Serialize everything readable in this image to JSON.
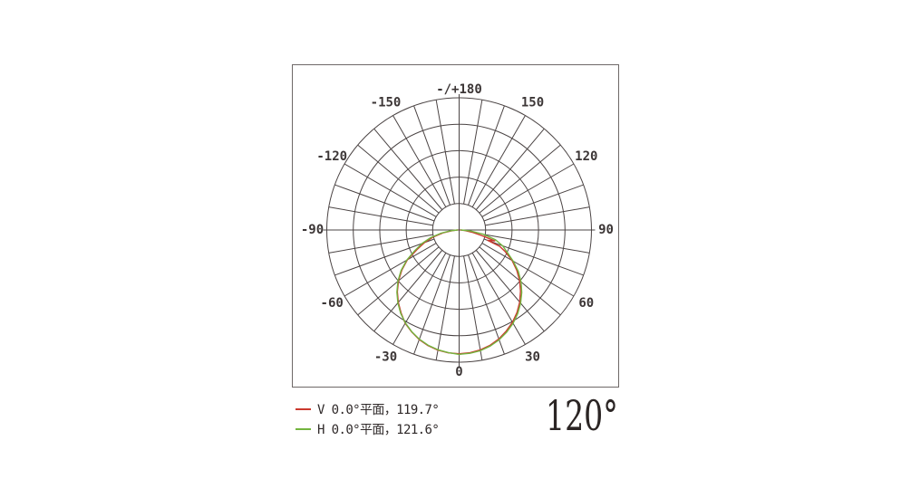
{
  "colors": {
    "background": "#ffffff",
    "frame_border": "#6e6867",
    "grid": "#4b4444",
    "label_text": "#3c3636",
    "legend_text": "#2e2828",
    "beam_angle_text": "#2b2524",
    "v_curve": "#cb392e",
    "h_curve": "#73b43e"
  },
  "legend": {
    "items": [
      {
        "name": "V",
        "label": "V 0.0°平面，119.7°",
        "color": "#cb392e"
      },
      {
        "name": "H",
        "label": "H 0.0°平面，121.6°",
        "color": "#73b43e"
      }
    ]
  },
  "beam_angle": {
    "value_label": "120°"
  },
  "chart_data": {
    "type": "line",
    "polar": true,
    "title": "",
    "angle_unit": "deg",
    "zero_direction": "down",
    "value_meaning": "relative luminous intensity, fraction of outer ring radius",
    "ring_fractions": [
      0.2,
      0.4,
      0.6,
      0.8,
      1.0
    ],
    "spoke_step_deg": 10,
    "angle_ticks": [
      {
        "angle": 0,
        "label": "0"
      },
      {
        "angle": 30,
        "label": "30"
      },
      {
        "angle": 60,
        "label": "60"
      },
      {
        "angle": 90,
        "label": "90"
      },
      {
        "angle": 120,
        "label": "120"
      },
      {
        "angle": 150,
        "label": "150"
      },
      {
        "angle": 180,
        "label": "-/+180"
      },
      {
        "angle": -150,
        "label": "-150"
      },
      {
        "angle": -120,
        "label": "-120"
      },
      {
        "angle": -90,
        "label": "-90"
      },
      {
        "angle": -60,
        "label": "-60"
      },
      {
        "angle": -30,
        "label": "-30"
      }
    ],
    "series": [
      {
        "name": "V 0.0°平面",
        "beam_angle_deg": 119.7,
        "color": "#cb392e",
        "points": [
          [
            -90,
            0.01
          ],
          [
            -85,
            0.05
          ],
          [
            -80,
            0.12
          ],
          [
            -75,
            0.2
          ],
          [
            -70,
            0.278
          ],
          [
            -65,
            0.352
          ],
          [
            -60,
            0.452
          ],
          [
            -55,
            0.528
          ],
          [
            -50,
            0.598
          ],
          [
            -45,
            0.66
          ],
          [
            -40,
            0.715
          ],
          [
            -35,
            0.765
          ],
          [
            -30,
            0.815
          ],
          [
            -25,
            0.85
          ],
          [
            -20,
            0.882
          ],
          [
            -15,
            0.906
          ],
          [
            -10,
            0.923
          ],
          [
            -5,
            0.933
          ],
          [
            0,
            0.936
          ],
          [
            5,
            0.932
          ],
          [
            10,
            0.921
          ],
          [
            15,
            0.903
          ],
          [
            20,
            0.877
          ],
          [
            25,
            0.843
          ],
          [
            30,
            0.806
          ],
          [
            35,
            0.762
          ],
          [
            40,
            0.712
          ],
          [
            45,
            0.656
          ],
          [
            50,
            0.597
          ],
          [
            55,
            0.532
          ],
          [
            60,
            0.462
          ],
          [
            65,
            0.382
          ],
          [
            68,
            0.33
          ],
          [
            70,
            0.23
          ],
          [
            73,
            0.282
          ],
          [
            76,
            0.18
          ],
          [
            80,
            0.105
          ],
          [
            85,
            0.042
          ],
          [
            90,
            0.01
          ]
        ]
      },
      {
        "name": "H 0.0°平面",
        "beam_angle_deg": 121.6,
        "color": "#73b43e",
        "points": [
          [
            -90,
            0.012
          ],
          [
            -85,
            0.062
          ],
          [
            -80,
            0.138
          ],
          [
            -75,
            0.222
          ],
          [
            -70,
            0.298
          ],
          [
            -65,
            0.37
          ],
          [
            -60,
            0.458
          ],
          [
            -55,
            0.536
          ],
          [
            -50,
            0.604
          ],
          [
            -45,
            0.665
          ],
          [
            -40,
            0.72
          ],
          [
            -35,
            0.77
          ],
          [
            -30,
            0.812
          ],
          [
            -25,
            0.848
          ],
          [
            -20,
            0.879
          ],
          [
            -15,
            0.903
          ],
          [
            -10,
            0.92
          ],
          [
            -5,
            0.931
          ],
          [
            0,
            0.941
          ],
          [
            5,
            0.936
          ],
          [
            10,
            0.927
          ],
          [
            15,
            0.909
          ],
          [
            20,
            0.884
          ],
          [
            25,
            0.852
          ],
          [
            30,
            0.815
          ],
          [
            35,
            0.772
          ],
          [
            40,
            0.723
          ],
          [
            45,
            0.669
          ],
          [
            50,
            0.611
          ],
          [
            55,
            0.546
          ],
          [
            60,
            0.472
          ],
          [
            65,
            0.402
          ],
          [
            70,
            0.35
          ],
          [
            75,
            0.284
          ],
          [
            80,
            0.185
          ],
          [
            85,
            0.085
          ],
          [
            90,
            0.015
          ]
        ]
      }
    ]
  }
}
